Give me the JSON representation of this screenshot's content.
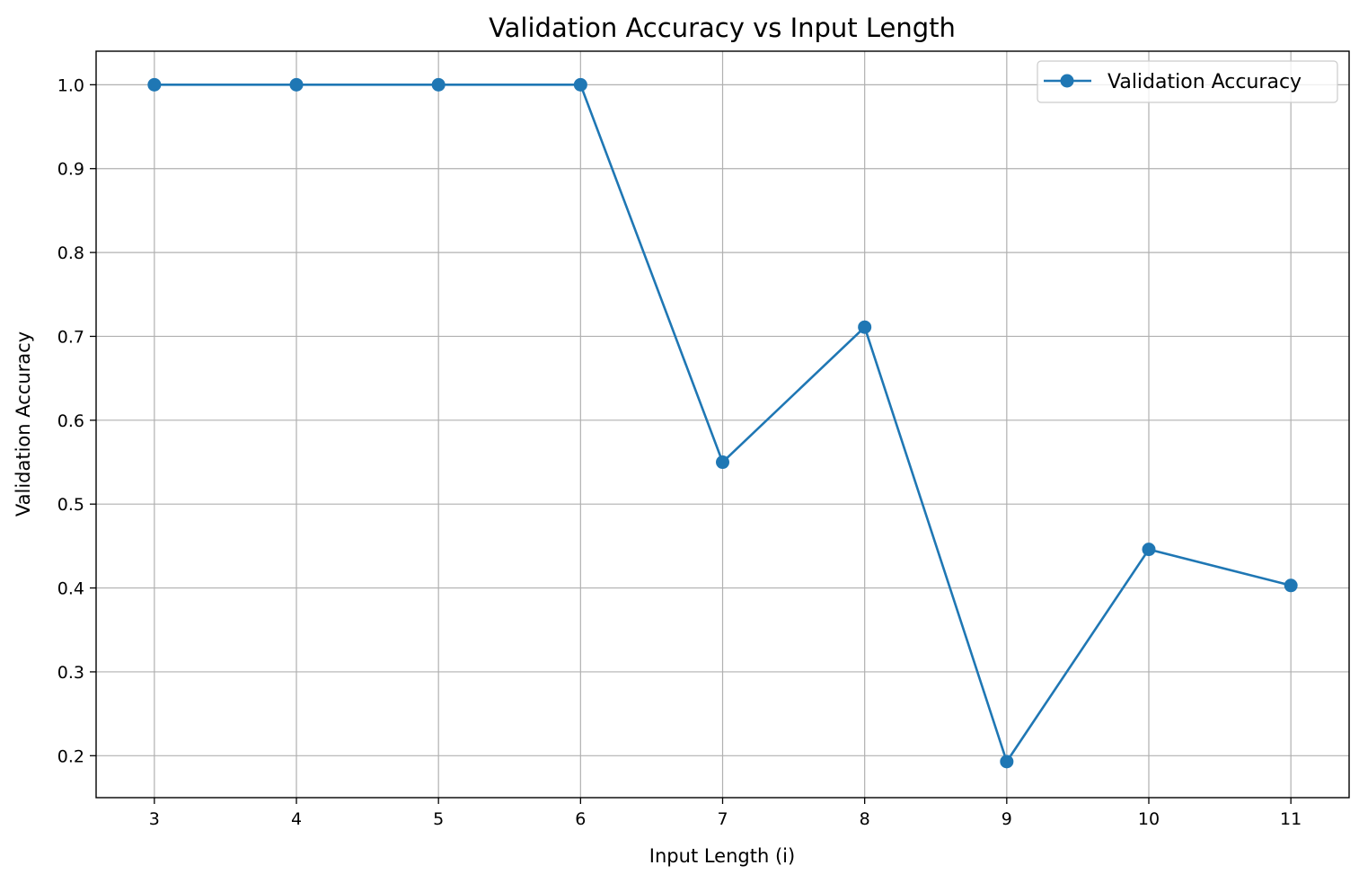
{
  "chart_data": {
    "type": "line",
    "title": "Validation Accuracy vs Input Length",
    "xlabel": "Input Length (i)",
    "ylabel": "Validation Accuracy",
    "x": [
      3,
      4,
      5,
      6,
      7,
      8,
      9,
      10,
      11
    ],
    "xticks": [
      "3",
      "4",
      "5",
      "6",
      "7",
      "8",
      "9",
      "10",
      "11"
    ],
    "yticks": [
      "0.2",
      "0.3",
      "0.4",
      "0.5",
      "0.6",
      "0.7",
      "0.8",
      "0.9",
      "1.0"
    ],
    "xlim": [
      2.59,
      11.41
    ],
    "ylim": [
      0.15,
      1.04
    ],
    "grid": true,
    "legend_position": "top-right",
    "series": [
      {
        "name": "Validation Accuracy",
        "color": "#1f77b4",
        "marker": "circle",
        "values": [
          1.0,
          1.0,
          1.0,
          1.0,
          0.55,
          0.711,
          0.193,
          0.446,
          0.403
        ]
      }
    ]
  }
}
